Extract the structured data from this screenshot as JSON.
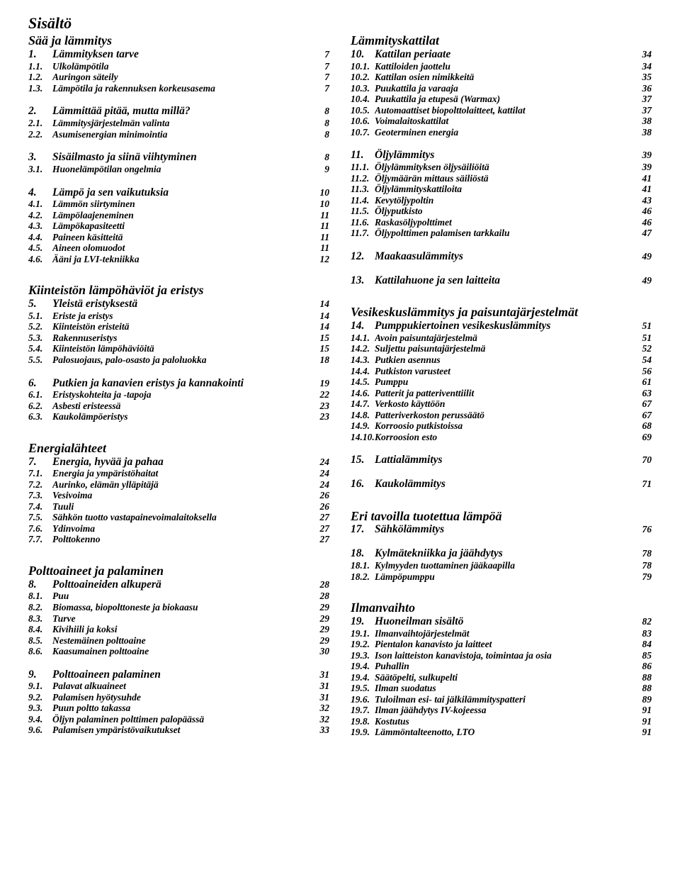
{
  "title": "Sisältö",
  "left": [
    {
      "type": "section",
      "label": "Sää ja lämmitys"
    },
    {
      "type": "chapter",
      "num": "1.",
      "label": "Lämmityksen tarve",
      "page": "7"
    },
    {
      "type": "sub",
      "num": "1.1.",
      "label": "Ulkolämpötila",
      "page": "7"
    },
    {
      "type": "sub",
      "num": "1.2.",
      "label": "Auringon säteily",
      "page": "7"
    },
    {
      "type": "sub",
      "num": "1.3.",
      "label": "Lämpötila ja rakennuksen korkeusasema",
      "page": "7"
    },
    {
      "type": "chapter",
      "num": "2.",
      "label": "Lämmittää pitää, mutta millä?",
      "page": "8",
      "gap": true
    },
    {
      "type": "sub",
      "num": "2.1.",
      "label": "Lämmitysjärjestelmän valinta",
      "page": "8"
    },
    {
      "type": "sub",
      "num": "2.2.",
      "label": "Asumisenergian minimointia",
      "page": "8"
    },
    {
      "type": "chapter",
      "num": "3.",
      "label": "Sisäilmasto ja siinä viihtyminen",
      "page": "8",
      "gap": true
    },
    {
      "type": "sub",
      "num": "3.1.",
      "label": "Huonelämpötilan ongelmia",
      "page": "9"
    },
    {
      "type": "chapter",
      "num": "4.",
      "label": "Lämpö ja sen vaikutuksia",
      "page": "10",
      "gap": true
    },
    {
      "type": "sub",
      "num": "4.1.",
      "label": "Lämmön siirtyminen",
      "page": "10"
    },
    {
      "type": "sub",
      "num": "4.2.",
      "label": "Lämpölaajeneminen",
      "page": "11"
    },
    {
      "type": "sub",
      "num": "4.3.",
      "label": "Lämpökapasiteetti",
      "page": "11"
    },
    {
      "type": "sub",
      "num": "4.4.",
      "label": "Paineen käsitteitä",
      "page": "11"
    },
    {
      "type": "sub",
      "num": "4.5.",
      "label": "Aineen olomuodot",
      "page": "11"
    },
    {
      "type": "sub",
      "num": "4.6.",
      "label": "Ääni ja LVI-tekniikka",
      "page": "12"
    },
    {
      "type": "section",
      "label": "Kiinteistön lämpöhäviöt ja eristys",
      "gap": true
    },
    {
      "type": "chapter",
      "num": "5.",
      "label": "Yleistä eristyksestä",
      "page": "14"
    },
    {
      "type": "sub",
      "num": "5.1.",
      "label": "Eriste ja eristys",
      "page": "14"
    },
    {
      "type": "sub",
      "num": "5.2.",
      "label": "Kiinteistön eristeitä",
      "page": "14"
    },
    {
      "type": "sub",
      "num": "5.3.",
      "label": "Rakennuseristys",
      "page": "15"
    },
    {
      "type": "sub",
      "num": "5.4.",
      "label": "Kiinteistön lämpöhäviöitä",
      "page": "15"
    },
    {
      "type": "sub",
      "num": "5.5.",
      "label": "Palosuojaus, palo-osasto ja paloluokka",
      "page": "18"
    },
    {
      "type": "chapter",
      "num": "6.",
      "label": "Putkien ja kanavien eristys ja kannakointi",
      "page": "19",
      "gap": true
    },
    {
      "type": "sub",
      "num": "6.1.",
      "label": "Eristyskohteita ja -tapoja",
      "page": "22"
    },
    {
      "type": "sub",
      "num": "6.2.",
      "label": "Asbesti eristeessä",
      "page": "23"
    },
    {
      "type": "sub",
      "num": "6.3.",
      "label": "Kaukolämpöeristys",
      "page": "23"
    },
    {
      "type": "section",
      "label": "Energialähteet",
      "gap": true
    },
    {
      "type": "chapter",
      "num": "7.",
      "label": "Energia, hyvää ja pahaa",
      "page": "24"
    },
    {
      "type": "sub",
      "num": "7.1.",
      "label": "Energia ja ympäristöhaitat",
      "page": "24"
    },
    {
      "type": "sub",
      "num": "7.2.",
      "label": "Aurinko, elämän ylläpitäjä",
      "page": "24"
    },
    {
      "type": "sub",
      "num": "7.3.",
      "label": "Vesivoima",
      "page": "26"
    },
    {
      "type": "sub",
      "num": "7.4.",
      "label": "Tuuli",
      "page": "26"
    },
    {
      "type": "sub",
      "num": "7.5.",
      "label": "Sähkön tuotto vastapainevoimalaitoksella",
      "page": "27"
    },
    {
      "type": "sub",
      "num": "7.6.",
      "label": "Ydinvoima",
      "page": "27"
    },
    {
      "type": "sub",
      "num": "7.7.",
      "label": "Polttokenno",
      "page": "27"
    },
    {
      "type": "section",
      "label": "Polttoaineet ja palaminen",
      "gap": true
    },
    {
      "type": "chapter",
      "num": "8.",
      "label": "Polttoaineiden alkuperä",
      "page": "28"
    },
    {
      "type": "sub",
      "num": "8.1.",
      "label": "Puu",
      "page": "28"
    },
    {
      "type": "sub",
      "num": "8.2.",
      "label": "Biomassa, biopolttoneste ja biokaasu",
      "page": "29"
    },
    {
      "type": "sub",
      "num": "8.3.",
      "label": "Turve",
      "page": "29"
    },
    {
      "type": "sub",
      "num": "8.4.",
      "label": "Kivihiili ja koksi",
      "page": "29"
    },
    {
      "type": "sub",
      "num": "8.5.",
      "label": "Nestemäinen polttoaine",
      "page": "29"
    },
    {
      "type": "sub",
      "num": "8.6.",
      "label": "Kaasumainen polttoaine",
      "page": "30"
    },
    {
      "type": "chapter",
      "num": "9.",
      "label": "Polttoaineen palaminen",
      "page": "31",
      "gap": true
    },
    {
      "type": "sub",
      "num": "9.1.",
      "label": "Palavat alkuaineet",
      "page": "31"
    },
    {
      "type": "sub",
      "num": "9.2.",
      "label": "Palamisen hyötysuhde",
      "page": "31"
    },
    {
      "type": "sub",
      "num": "9.3.",
      "label": "Puun poltto takassa",
      "page": "32"
    },
    {
      "type": "sub",
      "num": "9.4.",
      "label": "Öljyn palaminen polttimen palopäässä",
      "page": "32"
    },
    {
      "type": "sub",
      "num": "9.6.",
      "label": "Palamisen ympäristövaikutukset",
      "page": "33"
    }
  ],
  "right": [
    {
      "type": "section",
      "label": "Lämmityskattilat"
    },
    {
      "type": "chapter",
      "num": "10.",
      "label": "Kattilan periaate",
      "page": "34"
    },
    {
      "type": "sub",
      "num": "10.1.",
      "label": "Kattiloiden jaottelu",
      "page": "34"
    },
    {
      "type": "sub",
      "num": "10.2.",
      "label": "Kattilan osien nimikkeitä",
      "page": "35"
    },
    {
      "type": "sub",
      "num": "10.3.",
      "label": "Puukattila ja varaaja",
      "page": "36"
    },
    {
      "type": "sub",
      "num": "10.4.",
      "label": "Puukattila ja etupesä (Warmax)",
      "page": "37"
    },
    {
      "type": "sub",
      "num": "10.5.",
      "label": "Automaattiset biopolttolaitteet, kattilat",
      "page": "37"
    },
    {
      "type": "sub",
      "num": "10.6.",
      "label": "Voimalaitoskattilat",
      "page": "38"
    },
    {
      "type": "sub",
      "num": "10.7.",
      "label": "Geoterminen energia",
      "page": "38"
    },
    {
      "type": "chapter",
      "num": "11.",
      "label": "Öljylämmitys",
      "page": "39",
      "gap": true
    },
    {
      "type": "sub",
      "num": "11.1.",
      "label": "Öljylämmityksen öljysäiliöitä",
      "page": "39"
    },
    {
      "type": "sub",
      "num": "11.2.",
      "label": "Öljymäärän mittaus säiliöstä",
      "page": "41"
    },
    {
      "type": "sub",
      "num": "11.3.",
      "label": "Öljylämmityskattiloita",
      "page": "41"
    },
    {
      "type": "sub",
      "num": "11.4.",
      "label": "Kevytöljypoltin",
      "page": "43"
    },
    {
      "type": "sub",
      "num": "11.5.",
      "label": "Öljyputkisto",
      "page": "46"
    },
    {
      "type": "sub",
      "num": "11.6.",
      "label": "Raskasöljypolttimet",
      "page": "46"
    },
    {
      "type": "sub",
      "num": "11.7.",
      "label": "Öljypolttimen palamisen tarkkailu",
      "page": "47"
    },
    {
      "type": "chapter",
      "num": "12.",
      "label": "Maakaasulämmitys",
      "page": "49",
      "gap": true
    },
    {
      "type": "chapter",
      "num": "13.",
      "label": "Kattilahuone ja sen laitteita",
      "page": "49",
      "gap": true
    },
    {
      "type": "section",
      "label": "Vesikeskuslämmitys ja paisuntajärjestelmät",
      "gap": true
    },
    {
      "type": "chapter",
      "num": "14.",
      "label": "Pumppukiertoinen vesikeskuslämmitys",
      "page": "51"
    },
    {
      "type": "sub",
      "num": "14.1.",
      "label": "Avoin paisuntajärjestelmä",
      "page": "51"
    },
    {
      "type": "sub",
      "num": "14.2.",
      "label": "Suljettu paisuntajärjestelmä",
      "page": "52"
    },
    {
      "type": "sub",
      "num": "14.3.",
      "label": "Putkien asennus",
      "page": "54"
    },
    {
      "type": "sub",
      "num": "14.4.",
      "label": "Putkiston varusteet",
      "page": "56"
    },
    {
      "type": "sub",
      "num": "14.5.",
      "label": "Pumppu",
      "page": "61"
    },
    {
      "type": "sub",
      "num": "14.6.",
      "label": "Patterit ja patteriventtiilit",
      "page": "63"
    },
    {
      "type": "sub",
      "num": "14.7.",
      "label": "Verkosto käyttöön",
      "page": "67"
    },
    {
      "type": "sub",
      "num": "14.8.",
      "label": "Patteriverkoston perussäätö",
      "page": "67"
    },
    {
      "type": "sub",
      "num": "14.9.",
      "label": "Korroosio putkistoissa",
      "page": "68"
    },
    {
      "type": "sub",
      "num": "14.10.",
      "label": "Korroosion esto",
      "page": "69"
    },
    {
      "type": "chapter",
      "num": "15.",
      "label": "Lattialämmitys",
      "page": "70",
      "gap": true
    },
    {
      "type": "chapter",
      "num": "16.",
      "label": "Kaukolämmitys",
      "page": "71",
      "gap": true
    },
    {
      "type": "section",
      "label": "Eri tavoilla tuotettua lämpöä",
      "gap": true
    },
    {
      "type": "chapter",
      "num": "17.",
      "label": "Sähkölämmitys",
      "page": "76"
    },
    {
      "type": "chapter",
      "num": "18.",
      "label": "Kylmätekniikka ja jäähdytys",
      "page": "78",
      "gap": true
    },
    {
      "type": "sub",
      "num": "18.1.",
      "label": "Kylmyyden tuottaminen jääkaapilla",
      "page": "78"
    },
    {
      "type": "sub",
      "num": "18.2.",
      "label": "Lämpöpumppu",
      "page": "79"
    },
    {
      "type": "section",
      "label": "Ilmanvaihto",
      "gap": true
    },
    {
      "type": "chapter",
      "num": "19.",
      "label": "Huoneilman sisältö",
      "page": "82"
    },
    {
      "type": "sub",
      "num": "19.1.",
      "label": "Ilmanvaihtojärjestelmät",
      "page": "83"
    },
    {
      "type": "sub",
      "num": "19.2.",
      "label": "Pientalon kanavisto ja laitteet",
      "page": "84"
    },
    {
      "type": "sub",
      "num": "19.3.",
      "label": "Ison laitteiston kanavistoja, toimintaa ja osia",
      "page": "85"
    },
    {
      "type": "sub",
      "num": "19.4.",
      "label": "Puhallin",
      "page": "86"
    },
    {
      "type": "sub",
      "num": "19.4.",
      "label": "Säätöpelti, sulkupelti",
      "page": "88"
    },
    {
      "type": "sub",
      "num": "19.5.",
      "label": "Ilman suodatus",
      "page": "88"
    },
    {
      "type": "sub",
      "num": "19.6.",
      "label": "Tuloilman esi- tai jälkilämmityspatteri",
      "page": "89"
    },
    {
      "type": "sub",
      "num": "19.7.",
      "label": "Ilman jäähdytys IV-kojeessa",
      "page": "91"
    },
    {
      "type": "sub",
      "num": "19.8.",
      "label": "Kostutus",
      "page": "91"
    },
    {
      "type": "sub",
      "num": "19.9.",
      "label": "Lämmöntalteenotto, LTO",
      "page": "91"
    }
  ]
}
